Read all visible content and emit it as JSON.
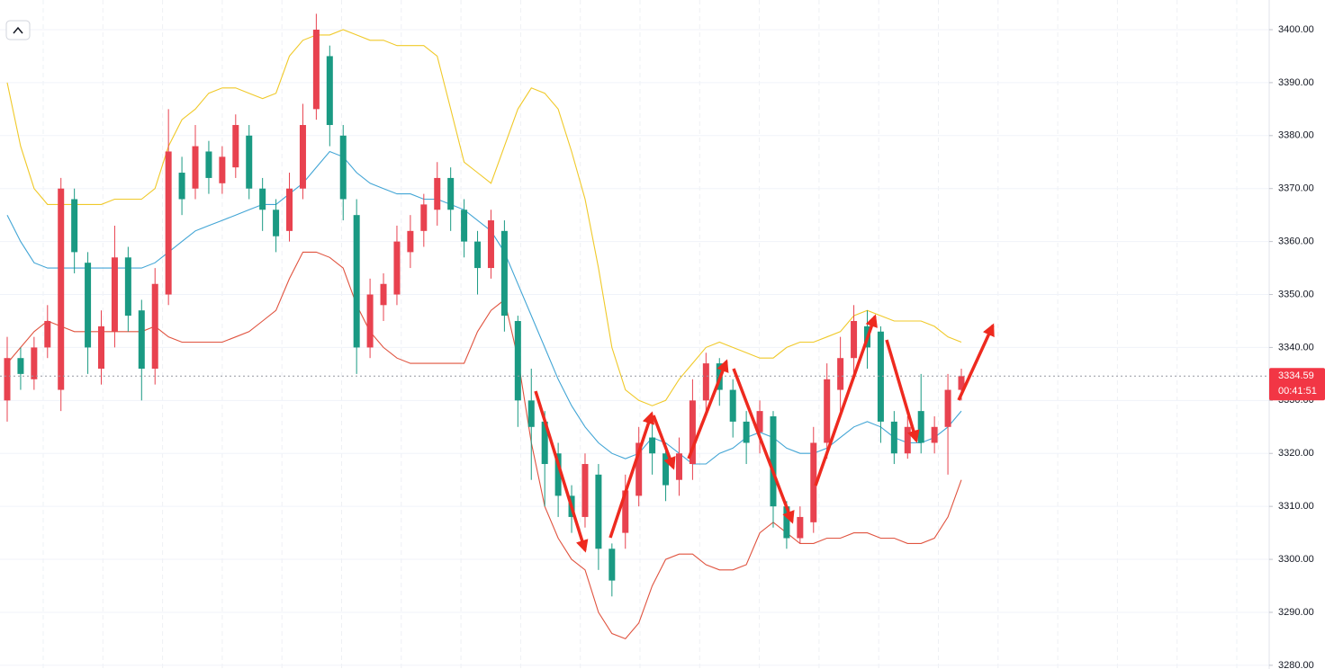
{
  "chart_data": {
    "type": "candlestick",
    "open": [
      3330,
      3338,
      3334,
      3340,
      3332,
      3368,
      3356,
      3336,
      3343,
      3357,
      3347,
      3336,
      3350,
      3373,
      3370,
      3377,
      3371,
      3374,
      3380,
      3370,
      3366,
      3362,
      3370,
      3385,
      3395,
      3380,
      3365,
      3340,
      3348,
      3350,
      3358,
      3362,
      3366,
      3372,
      3366,
      3360,
      3355,
      3362,
      3345,
      3330,
      3326,
      3320,
      3312,
      3308,
      3316,
      3302,
      3305,
      3312,
      3323,
      3320,
      3315,
      3318,
      3330,
      3337,
      3332,
      3326,
      3324,
      3327,
      3310,
      3304,
      3307,
      3322,
      3332,
      3338,
      3344,
      3343,
      3326,
      3320,
      3328,
      3322,
      3325,
      3332
    ],
    "high": [
      3342,
      3340,
      3342,
      3348,
      3372,
      3370,
      3358,
      3347,
      3363,
      3359,
      3349,
      3355,
      3385,
      3376,
      3382,
      3379,
      3378,
      3384,
      3382,
      3372,
      3368,
      3373,
      3386,
      3403,
      3397,
      3382,
      3368,
      3353,
      3354,
      3363,
      3365,
      3369,
      3375,
      3374,
      3368,
      3362,
      3366,
      3364,
      3346,
      3336,
      3328,
      3322,
      3314,
      3320,
      3318,
      3303,
      3316,
      3325,
      3327,
      3322,
      3323,
      3334,
      3339,
      3338,
      3334,
      3328,
      3330,
      3328,
      3311,
      3310,
      3325,
      3337,
      3342,
      3348,
      3347,
      3344,
      3328,
      3327,
      3335,
      3327,
      3335,
      3336
    ],
    "low": [
      3326,
      3332,
      3332,
      3338,
      3328,
      3354,
      3335,
      3333,
      3340,
      3343,
      3330,
      3333,
      3348,
      3365,
      3368,
      3369,
      3369,
      3372,
      3368,
      3362,
      3358,
      3360,
      3368,
      3383,
      3378,
      3364,
      3335,
      3338,
      3345,
      3348,
      3355,
      3359,
      3363,
      3362,
      3357,
      3350,
      3353,
      3343,
      3325,
      3315,
      3310,
      3308,
      3305,
      3306,
      3298,
      3293,
      3302,
      3310,
      3316,
      3311,
      3312,
      3315,
      3328,
      3329,
      3323,
      3318,
      3320,
      3306,
      3302,
      3303,
      3305,
      3319,
      3328,
      3335,
      3336,
      3322,
      3318,
      3319,
      3320,
      3320,
      3316,
      3330
    ],
    "close": [
      3338,
      3335,
      3340,
      3345,
      3370,
      3358,
      3340,
      3344,
      3357,
      3346,
      3336,
      3352,
      3377,
      3368,
      3378,
      3372,
      3376,
      3382,
      3370,
      3366,
      3361,
      3370,
      3382,
      3400,
      3382,
      3368,
      3340,
      3350,
      3352,
      3360,
      3362,
      3367,
      3372,
      3366,
      3360,
      3355,
      3364,
      3346,
      3330,
      3325,
      3318,
      3312,
      3308,
      3318,
      3302,
      3296,
      3313,
      3322,
      3320,
      3314,
      3320,
      3330,
      3337,
      3332,
      3326,
      3322,
      3328,
      3310,
      3304,
      3308,
      3322,
      3334,
      3338,
      3345,
      3340,
      3326,
      3320,
      3325,
      3322,
      3325,
      3332,
      3334.59
    ],
    "up_color": "#e8424f",
    "down_color": "#1a9a83",
    "series": [
      {
        "color": "#f0c929",
        "values": [
          3390,
          3378,
          3370,
          3367,
          3367,
          3367,
          3367,
          3367,
          3368,
          3368,
          3368,
          3370,
          3378,
          3383,
          3385,
          3388,
          3389,
          3389,
          3388,
          3387,
          3388,
          3395,
          3398,
          3399,
          3399,
          3400,
          3399,
          3398,
          3398,
          3397,
          3397,
          3397,
          3395,
          3385,
          3375,
          3373,
          3371,
          3378,
          3385,
          3389,
          3388,
          3385,
          3377,
          3368,
          3355,
          3340,
          3332,
          3330,
          3329,
          3330,
          3334,
          3337,
          3340,
          3341,
          3340,
          3339,
          3338,
          3338,
          3340,
          3341,
          3341,
          3342,
          3343,
          3346,
          3347,
          3346,
          3345,
          3345,
          3345,
          3344,
          3342,
          3341
        ]
      },
      {
        "color": "#42a5d5",
        "values": [
          3365,
          3360,
          3356,
          3355,
          3355,
          3355,
          3355,
          3355,
          3355,
          3355,
          3355,
          3356,
          3358,
          3360,
          3362,
          3363,
          3364,
          3365,
          3366,
          3367,
          3367,
          3369,
          3371,
          3374,
          3377,
          3376,
          3373,
          3371,
          3370,
          3369,
          3369,
          3368,
          3368,
          3367,
          3366,
          3364,
          3362,
          3358,
          3352,
          3346,
          3340,
          3334,
          3329,
          3325,
          3322,
          3320,
          3319,
          3320,
          3323,
          3322,
          3320,
          3318,
          3318,
          3320,
          3321,
          3323,
          3324,
          3323,
          3321,
          3320,
          3320,
          3321,
          3323,
          3325,
          3326,
          3325,
          3323,
          3322,
          3322,
          3323,
          3325,
          3328
        ]
      },
      {
        "color": "#e0533f",
        "values": [
          3337,
          3340,
          3343,
          3345,
          3344,
          3343,
          3343,
          3343,
          3343,
          3343,
          3343,
          3344,
          3342,
          3341,
          3341,
          3341,
          3341,
          3342,
          3343,
          3345,
          3347,
          3353,
          3358,
          3358,
          3357,
          3355,
          3348,
          3343,
          3340,
          3338,
          3337,
          3337,
          3337,
          3337,
          3337,
          3343,
          3347,
          3349,
          3338,
          3322,
          3310,
          3304,
          3300,
          3298,
          3290,
          3286,
          3285,
          3288,
          3295,
          3300,
          3301,
          3301,
          3299,
          3298,
          3298,
          3299,
          3305,
          3307,
          3305,
          3303,
          3303,
          3304,
          3304,
          3305,
          3305,
          3304,
          3304,
          3303,
          3303,
          3304,
          3308,
          3315
        ]
      }
    ],
    "ylim": [
      3279.3,
      3405.6
    ],
    "yticks": [
      {
        "value": 3280,
        "label": "3280.00"
      },
      {
        "value": 3290,
        "label": "3290.00"
      },
      {
        "value": 3300,
        "label": "3300.00"
      },
      {
        "value": 3310,
        "label": "3310.00"
      },
      {
        "value": 3320,
        "label": "3320.00"
      },
      {
        "value": 3330,
        "label": "3330.00"
      },
      {
        "value": 3340,
        "label": "3340.00"
      },
      {
        "value": 3350,
        "label": "3350.00"
      },
      {
        "value": 3360,
        "label": "3360.00"
      },
      {
        "value": 3370,
        "label": "3370.00"
      },
      {
        "value": 3380,
        "label": "3380.00"
      },
      {
        "value": 3390,
        "label": "3390.00"
      },
      {
        "value": 3400,
        "label": "3400.00"
      }
    ],
    "grid": true,
    "last_price": 3334.59,
    "last_price_color": "#f23645",
    "countdown": "00:41:51"
  }
}
